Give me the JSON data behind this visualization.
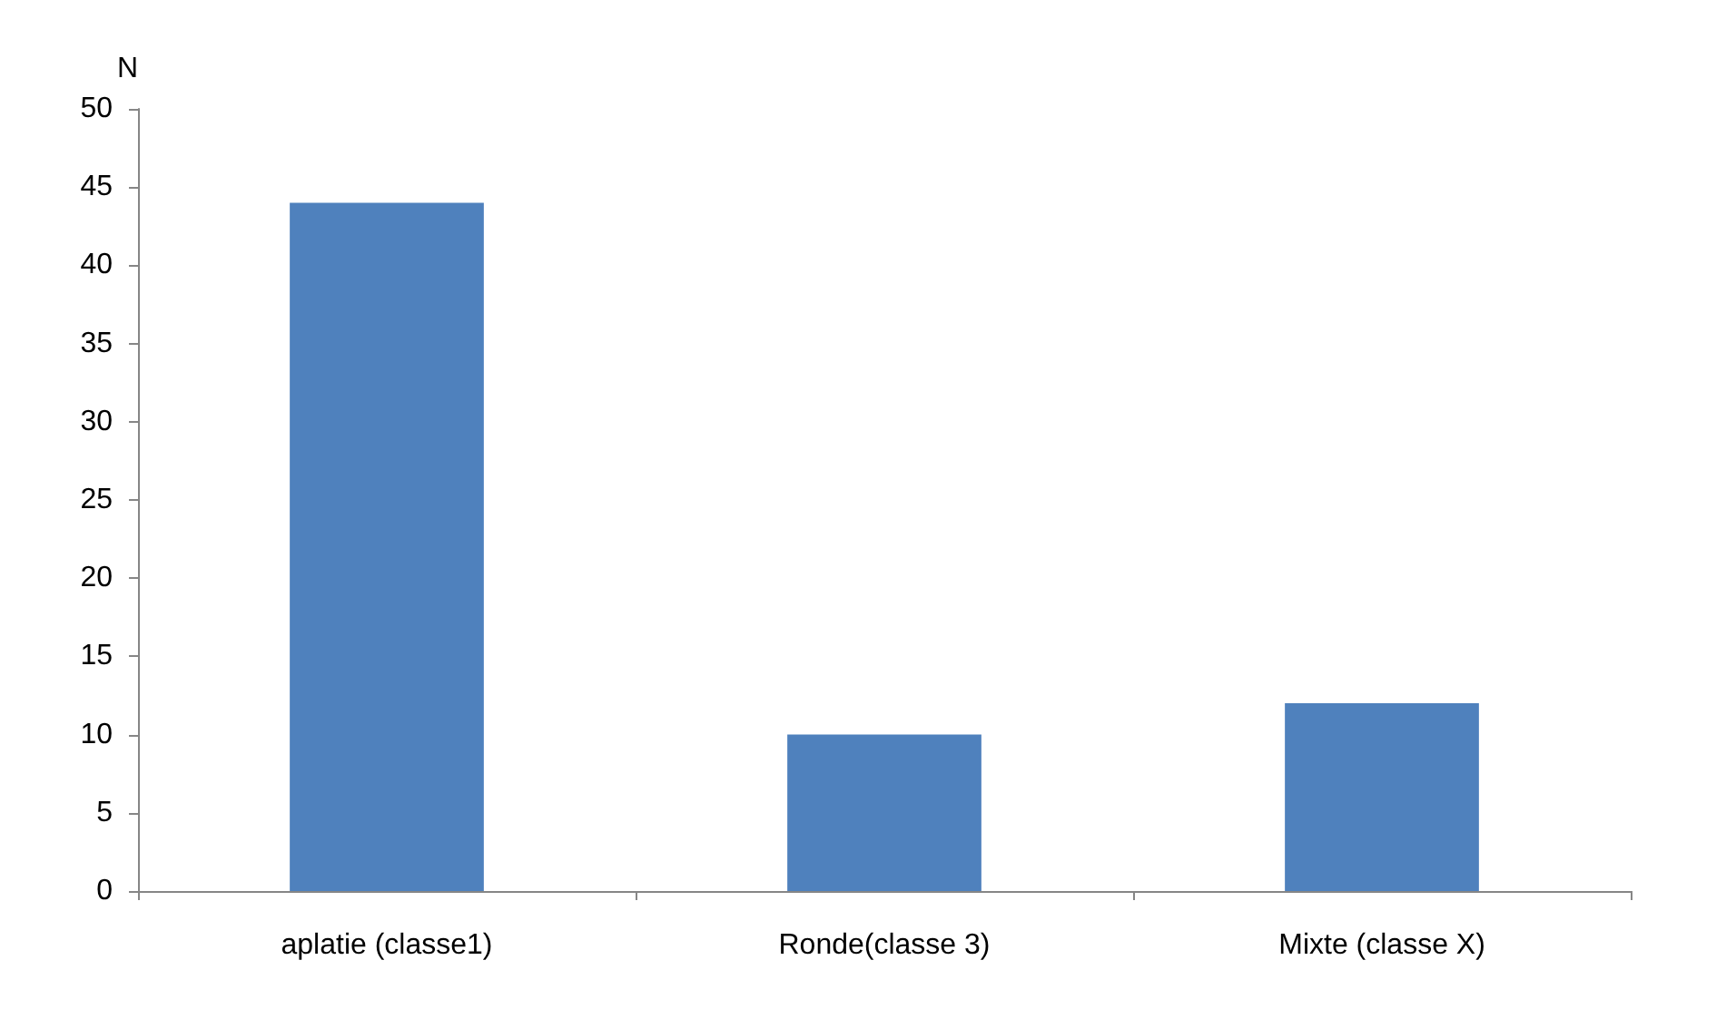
{
  "chart_data": {
    "type": "bar",
    "ylabel": "N",
    "categories": [
      "aplatie (classe1)",
      "Ronde(classe 3)",
      "Mixte (classe X)"
    ],
    "values": [
      44,
      10,
      12
    ],
    "color": "#4f81bd",
    "ylim": [
      0,
      50
    ],
    "yticks": [
      0,
      5,
      10,
      15,
      20,
      25,
      30,
      35,
      40,
      45,
      50
    ],
    "grid": false
  }
}
